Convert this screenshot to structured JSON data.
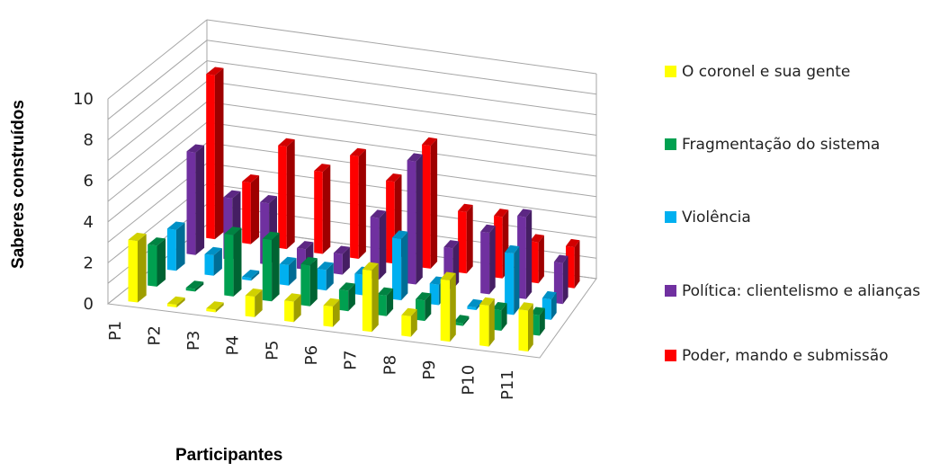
{
  "chart_data": {
    "type": "bar",
    "ylabel": "Saberes construídos",
    "xlabel": "Participantes",
    "ylim": [
      0,
      10
    ],
    "yticks": [
      "0",
      "2",
      "4",
      "6",
      "8",
      "10"
    ],
    "categories": [
      "P1",
      "P2",
      "P3",
      "P4",
      "P5",
      "P6",
      "P7",
      "P8",
      "P9",
      "P10",
      "P11"
    ],
    "grid": true,
    "legend_position": "right",
    "series": [
      {
        "name": "O coronel e sua gente",
        "color": "#ffff00",
        "values": [
          3,
          0,
          0,
          1,
          1,
          1,
          3,
          1,
          3,
          2,
          2
        ]
      },
      {
        "name": "Fragmentação do sistema",
        "color": "#00a050",
        "values": [
          2,
          0,
          3,
          3,
          2,
          1,
          1,
          1,
          0,
          1,
          1
        ]
      },
      {
        "name": "Violência",
        "color": "#00b0f0",
        "values": [
          2,
          1,
          0,
          1,
          1,
          1,
          3,
          1,
          0,
          3,
          1
        ]
      },
      {
        "name": "Política: clientelismo e alianças",
        "color": "#7030a0",
        "values": [
          5,
          3,
          3,
          1,
          1,
          3,
          6,
          2,
          3,
          4,
          2
        ]
      },
      {
        "name": "Poder, mando e submissão",
        "color": "#ff0000",
        "values": [
          8,
          3,
          5,
          4,
          5,
          4,
          6,
          3,
          3,
          2,
          2
        ]
      }
    ]
  }
}
